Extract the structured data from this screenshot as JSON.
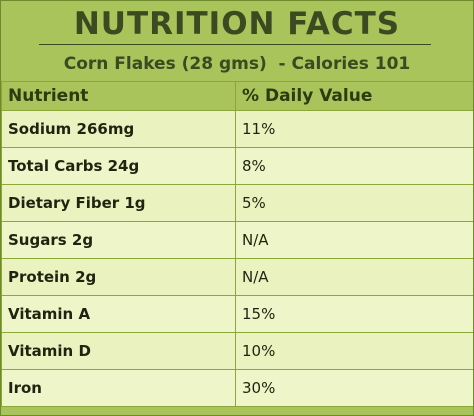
{
  "title": "NUTRITION FACTS",
  "subtitle": "Corn Flakes (28 gms)  - Calories 101",
  "table": {
    "headers": [
      "Nutrient",
      "% Daily Value"
    ],
    "rows": [
      {
        "nutrient": "Sodium 266mg",
        "value": "11%"
      },
      {
        "nutrient": "Total Carbs 24g",
        "value": "8%"
      },
      {
        "nutrient": "Dietary Fiber 1g",
        "value": "5%"
      },
      {
        "nutrient": "Sugars 2g",
        "value": "N/A"
      },
      {
        "nutrient": "Protein 2g",
        "value": "N/A"
      },
      {
        "nutrient": "Vitamin A",
        "value": "15%"
      },
      {
        "nutrient": "Vitamin D",
        "value": "10%"
      },
      {
        "nutrient": "Iron",
        "value": "30%"
      }
    ]
  },
  "colors": {
    "header_background": "#a8c45a",
    "title_text": "#3b4a20",
    "row_background": "#eaf2c0",
    "grid_lines": "#8ca63a"
  }
}
